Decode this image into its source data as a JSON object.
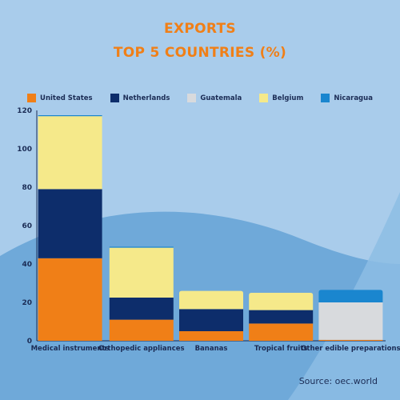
{
  "title_line1": "EXPORTS",
  "title_line2": "TOP 5 COUNTRIES (%)",
  "source": "Source: oec.world",
  "colors": {
    "background": "#a9cceb",
    "title": "#f07f17"
  },
  "chart_data": {
    "type": "bar",
    "stacked": true,
    "categories": [
      "Medical instruments",
      "Orthopedic appliances",
      "Bananas",
      "Tropical fruits",
      "Other edible preparations"
    ],
    "ylim": [
      0,
      120
    ],
    "yticks": [
      0,
      20,
      40,
      60,
      80,
      100,
      120
    ],
    "legend_position": "top",
    "grid": false,
    "series": [
      {
        "name": "United States",
        "color": "#f07f17",
        "values": [
          43,
          11,
          5,
          9,
          0.5
        ]
      },
      {
        "name": "Netherlands",
        "color": "#0d2d6b",
        "values": [
          36,
          11.5,
          11.5,
          7,
          0
        ]
      },
      {
        "name": "Guatemala",
        "color": "#d8dadd",
        "values": [
          0,
          0,
          0,
          0,
          19.5
        ]
      },
      {
        "name": "Belgium",
        "color": "#f5e98a",
        "values": [
          38,
          26,
          9.5,
          9,
          0
        ]
      },
      {
        "name": "Nicaragua",
        "color": "#1a86cf",
        "values": [
          0.5,
          0.5,
          0,
          0,
          6.5
        ]
      }
    ]
  }
}
